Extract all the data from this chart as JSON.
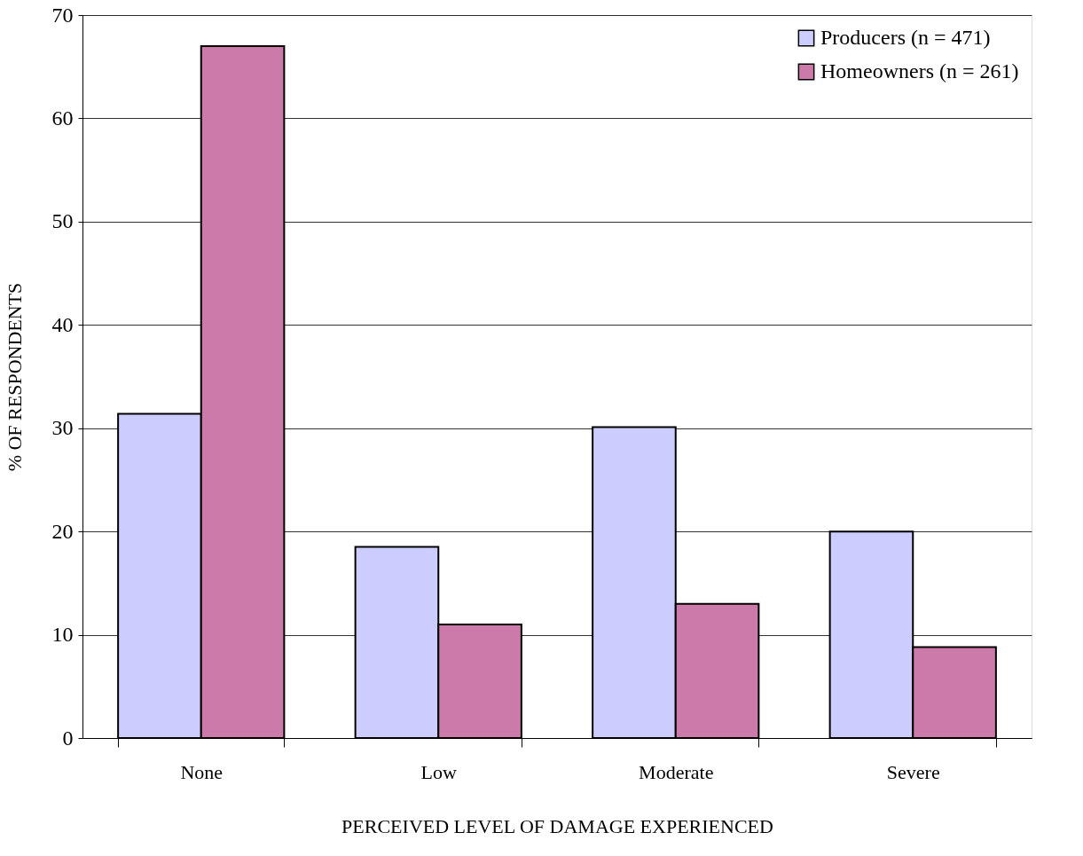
{
  "chart_data": {
    "type": "bar",
    "xlabel": "PERCEIVED LEVEL OF DAMAGE EXPERIENCED",
    "ylabel": "% OF RESPONDENTS",
    "categories": [
      "None",
      "Low",
      "Moderate",
      "Severe"
    ],
    "series": [
      {
        "name": "Producers (n = 471)",
        "color": "#ccccff",
        "values": [
          31.4,
          18.5,
          30.1,
          20.0
        ]
      },
      {
        "name": "Homeowners (n = 261)",
        "color": "#cc7aaa",
        "values": [
          67.0,
          11.0,
          13.0,
          8.8
        ]
      }
    ],
    "ylim": [
      0,
      70
    ],
    "yticks": [
      0,
      10,
      20,
      30,
      40,
      50,
      60,
      70
    ],
    "grid": "y",
    "legend": "top right"
  }
}
